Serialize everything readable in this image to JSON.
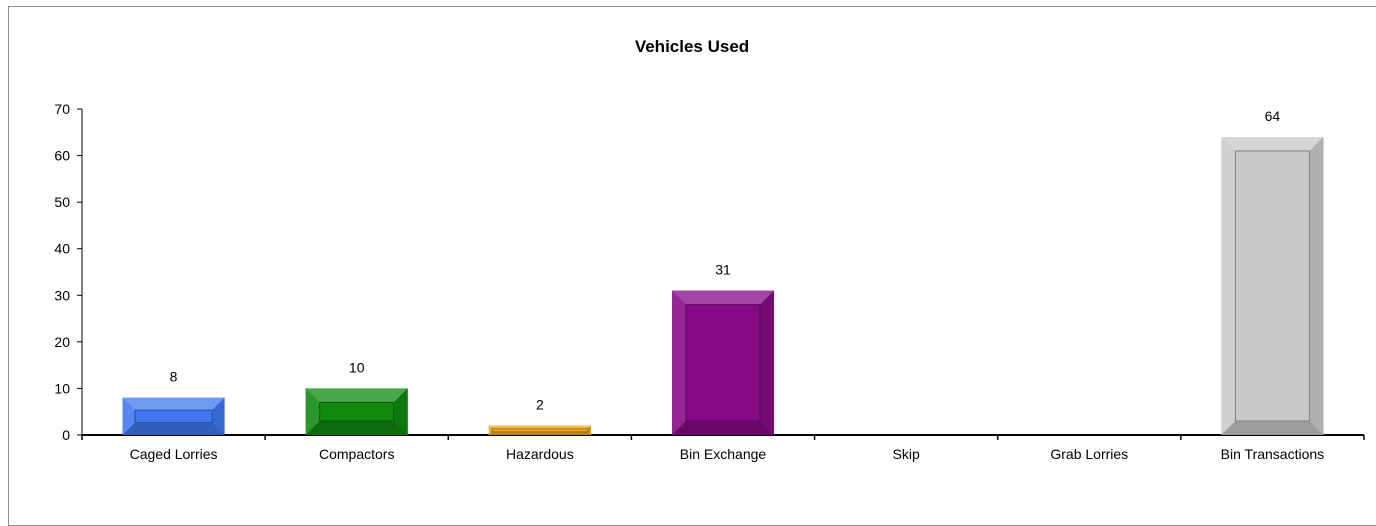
{
  "chart_data": {
    "type": "bar",
    "title": "Vehicles Used",
    "xlabel": "",
    "ylabel": "",
    "categories": [
      "Caged Lorries",
      "Compactors",
      "Hazardous",
      "Bin Exchange",
      "Skip",
      "Grab Lorries",
      "Bin Transactions"
    ],
    "values": [
      8,
      10,
      2,
      31,
      0,
      0,
      64
    ],
    "data_labels": [
      "8",
      "10",
      "2",
      "31",
      "",
      "",
      "64"
    ],
    "colors": [
      "#3f78ee",
      "#0f8a0f",
      "#f0a818",
      "#860a86",
      "#cccccc",
      "#cccccc",
      "#c8c8c8"
    ],
    "ylim": [
      0,
      70
    ],
    "yticks": [
      0,
      10,
      20,
      30,
      40,
      50,
      60,
      70
    ],
    "grid": false,
    "legend": "none"
  }
}
